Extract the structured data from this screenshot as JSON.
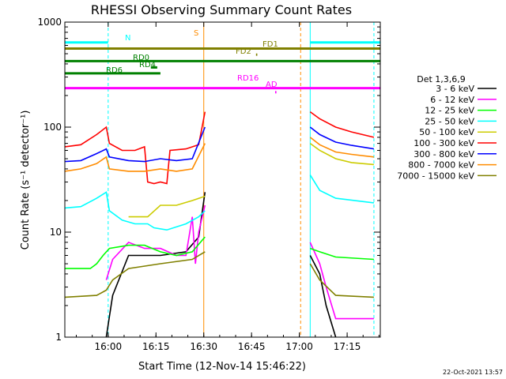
{
  "chart_data": {
    "type": "line",
    "title": "RHESSI Observing Summary Count Rates",
    "xlabel": "Start Time (12-Nov-14 15:46:22)",
    "ylabel": "Count Rate (s⁻¹ detector⁻¹)",
    "y_scale": "log",
    "ylim": [
      1,
      1000
    ],
    "xlim_minutes": [
      0,
      99
    ],
    "x_ticks": [
      {
        "label": "16:00",
        "minute": 13.6
      },
      {
        "label": "16:15",
        "minute": 28.6
      },
      {
        "label": "16:30",
        "minute": 43.6
      },
      {
        "label": "16:45",
        "minute": 58.6
      },
      {
        "label": "17:00",
        "minute": 73.6
      },
      {
        "label": "17:15",
        "minute": 88.6
      }
    ],
    "y_ticks": [
      {
        "label": "1",
        "value": 1
      },
      {
        "label": "10",
        "value": 10
      },
      {
        "label": "100",
        "value": 100
      },
      {
        "label": "1000",
        "value": 1000
      }
    ],
    "legend_title": "Det 1,3,6,9",
    "legend_position": "right-outside",
    "series": [
      {
        "name": "3 - 6 keV",
        "color": "#000000",
        "points": [
          [
            13,
            1
          ],
          [
            15,
            2.5
          ],
          [
            20,
            6
          ],
          [
            30,
            6
          ],
          [
            38,
            6.5
          ],
          [
            42,
            9
          ],
          [
            44,
            24
          ],
          [
            44.5,
            null
          ],
          [
            77,
            6
          ],
          [
            80,
            4
          ],
          [
            82,
            2
          ],
          [
            85,
            1
          ]
        ]
      },
      {
        "name": "6 - 12 keV",
        "color": "#ff00ff",
        "points": [
          [
            13,
            3.5
          ],
          [
            15,
            5.5
          ],
          [
            20,
            8
          ],
          [
            25,
            7
          ],
          [
            30,
            7
          ],
          [
            35,
            6
          ],
          [
            38,
            6
          ],
          [
            40,
            14
          ],
          [
            41,
            5
          ],
          [
            42,
            10
          ],
          [
            44,
            18
          ],
          [
            44.5,
            null
          ],
          [
            77,
            8
          ],
          [
            80,
            5
          ],
          [
            82,
            3
          ],
          [
            85,
            1.5
          ],
          [
            97,
            1.5
          ]
        ]
      },
      {
        "name": "12 - 25 keV",
        "color": "#00ff00",
        "points": [
          [
            0,
            4.5
          ],
          [
            8,
            4.5
          ],
          [
            10,
            5
          ],
          [
            12,
            6
          ],
          [
            14,
            7
          ],
          [
            20,
            7.5
          ],
          [
            25,
            7.5
          ],
          [
            30,
            6.5
          ],
          [
            35,
            6
          ],
          [
            40,
            6.5
          ],
          [
            44,
            9
          ],
          [
            44.5,
            null
          ],
          [
            77,
            7
          ],
          [
            80,
            6.5
          ],
          [
            85,
            5.8
          ],
          [
            97,
            5.5
          ]
        ]
      },
      {
        "name": "25 - 50 keV",
        "color": "#00ffff",
        "points": [
          [
            0,
            17
          ],
          [
            5,
            17.5
          ],
          [
            10,
            21
          ],
          [
            13,
            24
          ],
          [
            14,
            16
          ],
          [
            18,
            13
          ],
          [
            22,
            12
          ],
          [
            26,
            12
          ],
          [
            28,
            11
          ],
          [
            32,
            10.5
          ],
          [
            38,
            12
          ],
          [
            42,
            14
          ],
          [
            44,
            16
          ],
          [
            44.5,
            null
          ],
          [
            77,
            35
          ],
          [
            80,
            25
          ],
          [
            85,
            21
          ],
          [
            97,
            19
          ]
        ]
      },
      {
        "name": "50 - 100 keV",
        "color": "#cccc00",
        "points": [
          [
            13,
            null
          ],
          [
            20,
            14
          ],
          [
            26,
            14
          ],
          [
            30,
            18
          ],
          [
            35,
            18
          ],
          [
            40,
            20
          ],
          [
            44,
            22
          ],
          [
            44.5,
            null
          ],
          [
            77,
            70
          ],
          [
            80,
            60
          ],
          [
            85,
            50
          ],
          [
            90,
            46
          ],
          [
            97,
            44
          ]
        ]
      },
      {
        "name": "100 - 300 keV",
        "color": "#ff0000",
        "points": [
          [
            0,
            65
          ],
          [
            5,
            68
          ],
          [
            10,
            85
          ],
          [
            13,
            100
          ],
          [
            14,
            70
          ],
          [
            18,
            60
          ],
          [
            22,
            60
          ],
          [
            25,
            65
          ],
          [
            26,
            30
          ],
          [
            28,
            29
          ],
          [
            30,
            30
          ],
          [
            32,
            29
          ],
          [
            33,
            60
          ],
          [
            38,
            62
          ],
          [
            42,
            68
          ],
          [
            44,
            140
          ],
          [
            44.5,
            null
          ],
          [
            77,
            140
          ],
          [
            80,
            120
          ],
          [
            85,
            100
          ],
          [
            90,
            90
          ],
          [
            97,
            80
          ]
        ]
      },
      {
        "name": "300 - 800 keV",
        "color": "#0000ff",
        "points": [
          [
            0,
            47
          ],
          [
            5,
            48
          ],
          [
            10,
            56
          ],
          [
            13,
            62
          ],
          [
            14,
            52
          ],
          [
            20,
            48
          ],
          [
            25,
            47
          ],
          [
            30,
            50
          ],
          [
            35,
            48
          ],
          [
            40,
            50
          ],
          [
            44,
            100
          ],
          [
            44.5,
            null
          ],
          [
            77,
            100
          ],
          [
            80,
            85
          ],
          [
            85,
            72
          ],
          [
            90,
            67
          ],
          [
            97,
            62
          ]
        ]
      },
      {
        "name": "800 - 7000 keV",
        "color": "#ff8c00",
        "points": [
          [
            0,
            38
          ],
          [
            5,
            40
          ],
          [
            10,
            45
          ],
          [
            13,
            52
          ],
          [
            14,
            40
          ],
          [
            20,
            38
          ],
          [
            25,
            38
          ],
          [
            30,
            40
          ],
          [
            35,
            38
          ],
          [
            40,
            40
          ],
          [
            44,
            70
          ],
          [
            44.5,
            null
          ],
          [
            77,
            80
          ],
          [
            80,
            68
          ],
          [
            85,
            58
          ],
          [
            90,
            55
          ],
          [
            97,
            52
          ]
        ]
      },
      {
        "name": "7000 - 15000 keV",
        "color": "#808000",
        "points": [
          [
            0,
            2.4
          ],
          [
            10,
            2.5
          ],
          [
            13,
            2.8
          ],
          [
            15,
            3.5
          ],
          [
            20,
            4.5
          ],
          [
            30,
            5
          ],
          [
            40,
            5.5
          ],
          [
            44,
            6.5
          ],
          [
            44.5,
            null
          ],
          [
            77,
            5
          ],
          [
            80,
            3.5
          ],
          [
            85,
            2.5
          ],
          [
            97,
            2.4
          ]
        ]
      }
    ],
    "flags": [
      {
        "label": "N",
        "color": "#00ffff",
        "y": 640,
        "segments": [
          [
            0,
            13.6
          ],
          [
            77,
            99
          ]
        ]
      },
      {
        "label": "S",
        "color": "#ff8c00",
        "y": 560,
        "segments": [
          [
            43.6,
            74
          ]
        ]
      },
      {
        "label": "FD1",
        "color": "#808000",
        "y": 560,
        "segments": [
          [
            0,
            99
          ]
        ]
      },
      {
        "label": "FD2",
        "color": "#808000",
        "y": 490,
        "segments": [
          [
            60,
            60.4
          ]
        ]
      },
      {
        "label": "RD0",
        "color": "#008000",
        "y": 425,
        "segments": [
          [
            0,
            99
          ]
        ]
      },
      {
        "label": "RD4",
        "color": "#008000",
        "y": 370,
        "segments": [
          [
            27,
            29
          ]
        ]
      },
      {
        "label": "RD6",
        "color": "#008000",
        "y": 325,
        "segments": [
          [
            0,
            30
          ]
        ]
      },
      {
        "label": "RD16",
        "color": "#ff00ff",
        "y": 235,
        "segments": [
          [
            0,
            99
          ]
        ]
      },
      {
        "label": "AD",
        "color": "#ff00ff",
        "y": 215,
        "segments": [
          [
            66,
            66.4
          ]
        ]
      }
    ],
    "vlines": [
      {
        "minute": 13.6,
        "color": "#00ffff",
        "style": "dashed"
      },
      {
        "minute": 43.6,
        "color": "#ff8c00",
        "style": "solid"
      },
      {
        "minute": 74.0,
        "color": "#ff8c00",
        "style": "dashed"
      },
      {
        "minute": 77.0,
        "color": "#00ffff",
        "style": "solid"
      },
      {
        "minute": 97.0,
        "color": "#00ffff",
        "style": "dashed"
      }
    ]
  },
  "timestamp": "22-Oct-2021 13:57"
}
